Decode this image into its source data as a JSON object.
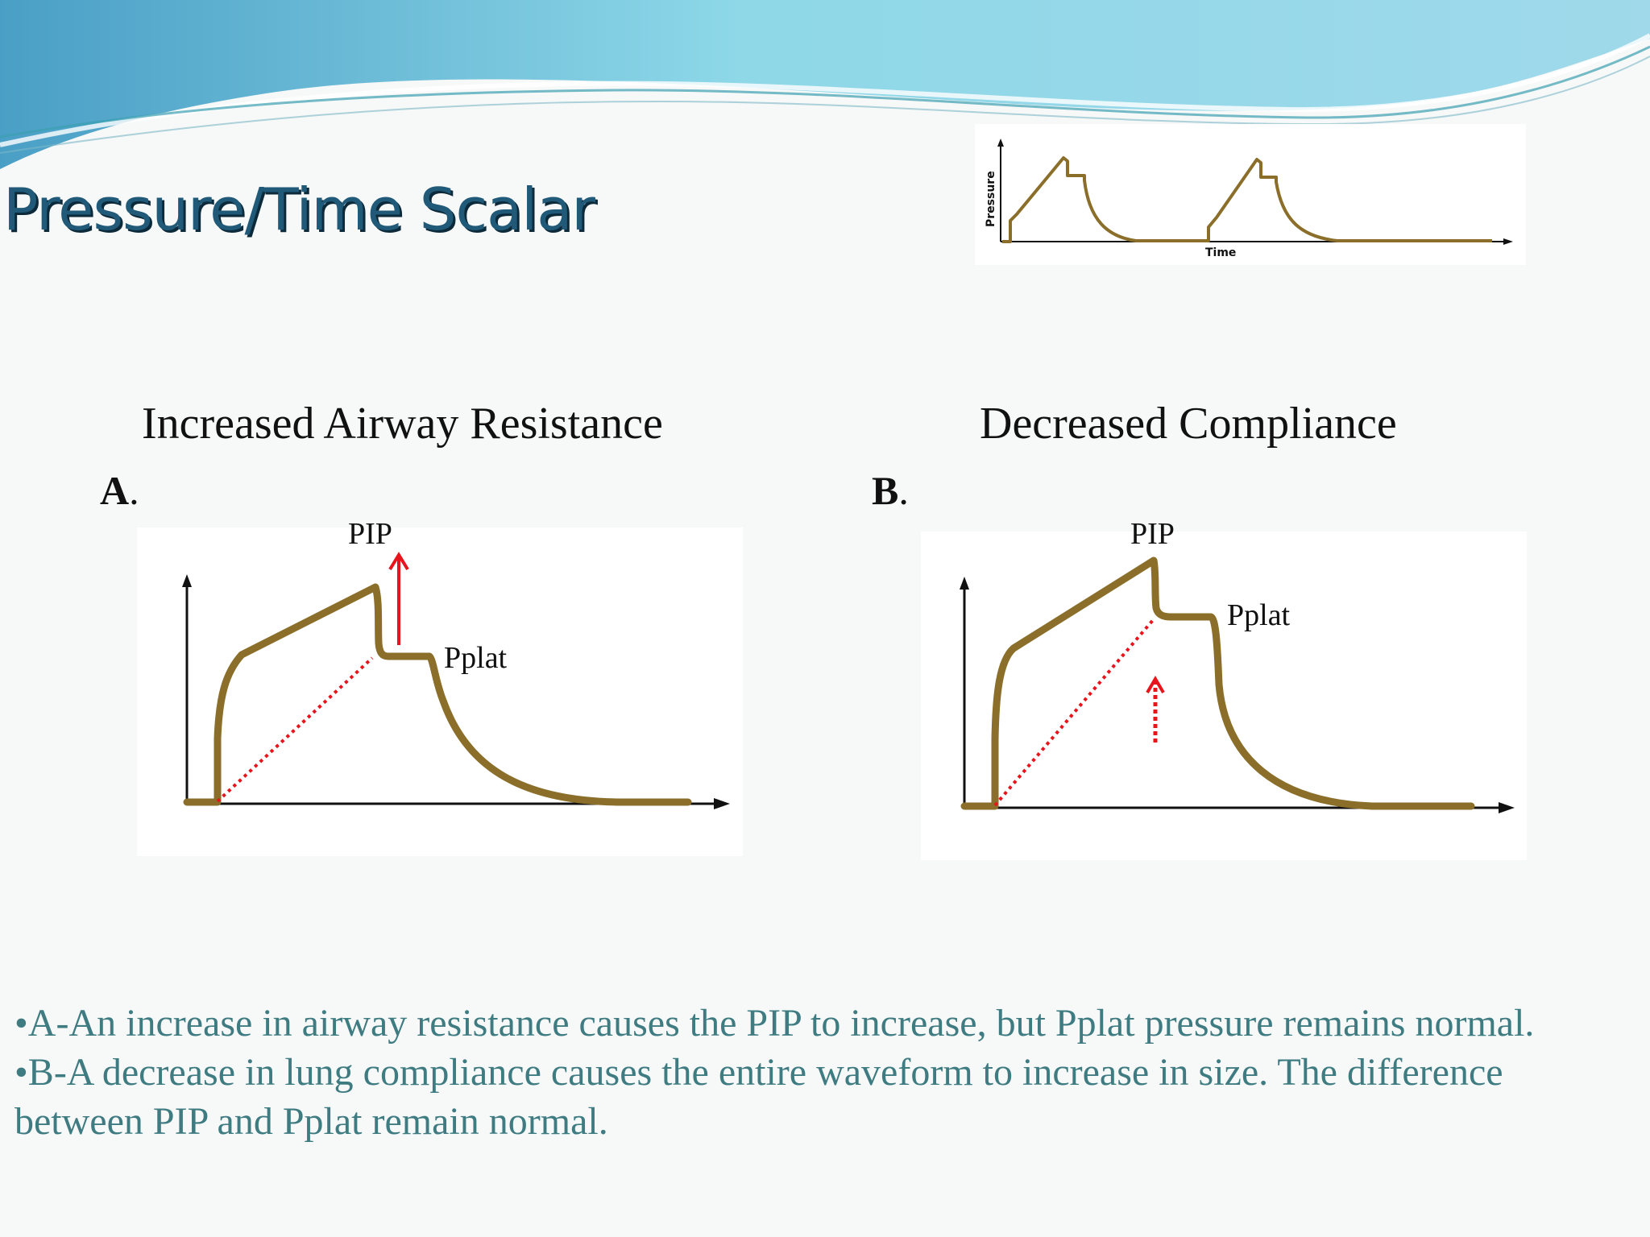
{
  "title": "Pressure/Time Scalar",
  "small_chart": {
    "y_label": "Pressure",
    "x_label": "Time"
  },
  "panels": [
    {
      "heading": "Increased Airway Resistance",
      "letter": "A",
      "letter_suffix": ".",
      "pip_label": "PIP",
      "pplat_label": "Pplat"
    },
    {
      "heading": "Decreased Compliance",
      "letter": "B",
      "letter_suffix": ".",
      "pip_label": "PIP",
      "pplat_label": "Pplat"
    }
  ],
  "bullets": [
    "•A-An increase in airway resistance causes the PIP to increase, but Pplat pressure remains normal.",
    "•B-A decrease in lung compliance causes the entire waveform to increase in size. The difference between PIP and Pplat remain normal."
  ],
  "colors": {
    "waveform": "#8a6e2a",
    "arrow": "#e8141c",
    "title": "#215a78",
    "bullet_text": "#3f7c82",
    "banner": "#7fd0e0"
  }
}
